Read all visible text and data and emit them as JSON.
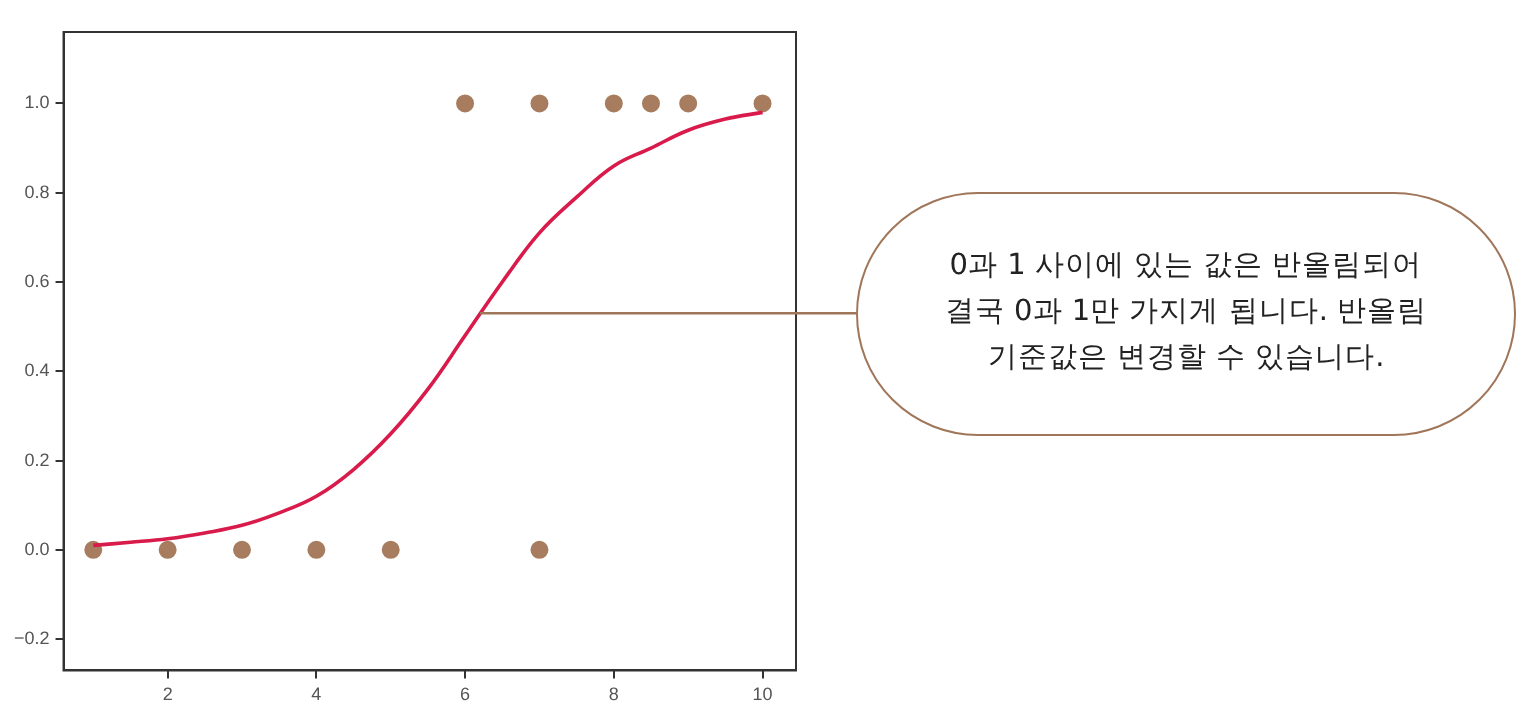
{
  "chart_data": {
    "type": "scatter",
    "series": [
      {
        "color": "#a87c5f",
        "marker": "circle",
        "x": [
          1,
          2,
          3,
          4,
          5,
          7,
          6,
          7,
          8,
          8.5,
          9,
          10
        ],
        "values": [
          0,
          0,
          0,
          0,
          0,
          0,
          1,
          1,
          1,
          1,
          1,
          1
        ]
      },
      {
        "type": "line",
        "marker": "none",
        "color": "#d81b4a",
        "x": [
          1,
          1.5,
          2,
          2.5,
          3,
          3.5,
          4,
          4.5,
          5,
          5.5,
          6,
          6.5,
          7,
          7.5,
          8,
          8.5,
          9,
          9.5,
          10
        ],
        "values": [
          0.01,
          0.017,
          0.025,
          0.038,
          0.055,
          0.083,
          0.12,
          0.18,
          0.26,
          0.36,
          0.48,
          0.6,
          0.71,
          0.79,
          0.86,
          0.9,
          0.94,
          0.965,
          0.98
        ]
      }
    ],
    "xlim": [
      0.6,
      10.45
    ],
    "xticks": [
      2,
      4,
      6,
      8,
      10
    ],
    "ylim": [
      -0.27,
      1.16
    ],
    "yticks": [
      {
        "value": -0.2,
        "label": "−0.2"
      },
      {
        "value": 0,
        "label": "0.0"
      },
      {
        "value": 0.2,
        "label": "0.2"
      },
      {
        "value": 0.4,
        "label": "0.4"
      },
      {
        "value": 0.6,
        "label": "0.6"
      },
      {
        "value": 0.8,
        "label": "0.8"
      },
      {
        "value": 1,
        "label": "1.0"
      }
    ],
    "grid": false,
    "legend": false,
    "annotations": [
      {
        "text": "0과 1 사이에 있는 값은 반올림되어 결국 0과 1만 가지게 됩니다. 반올림 기준값은 변경할 수 있습니다.",
        "x": 6.2,
        "y": 0.53
      }
    ]
  }
}
